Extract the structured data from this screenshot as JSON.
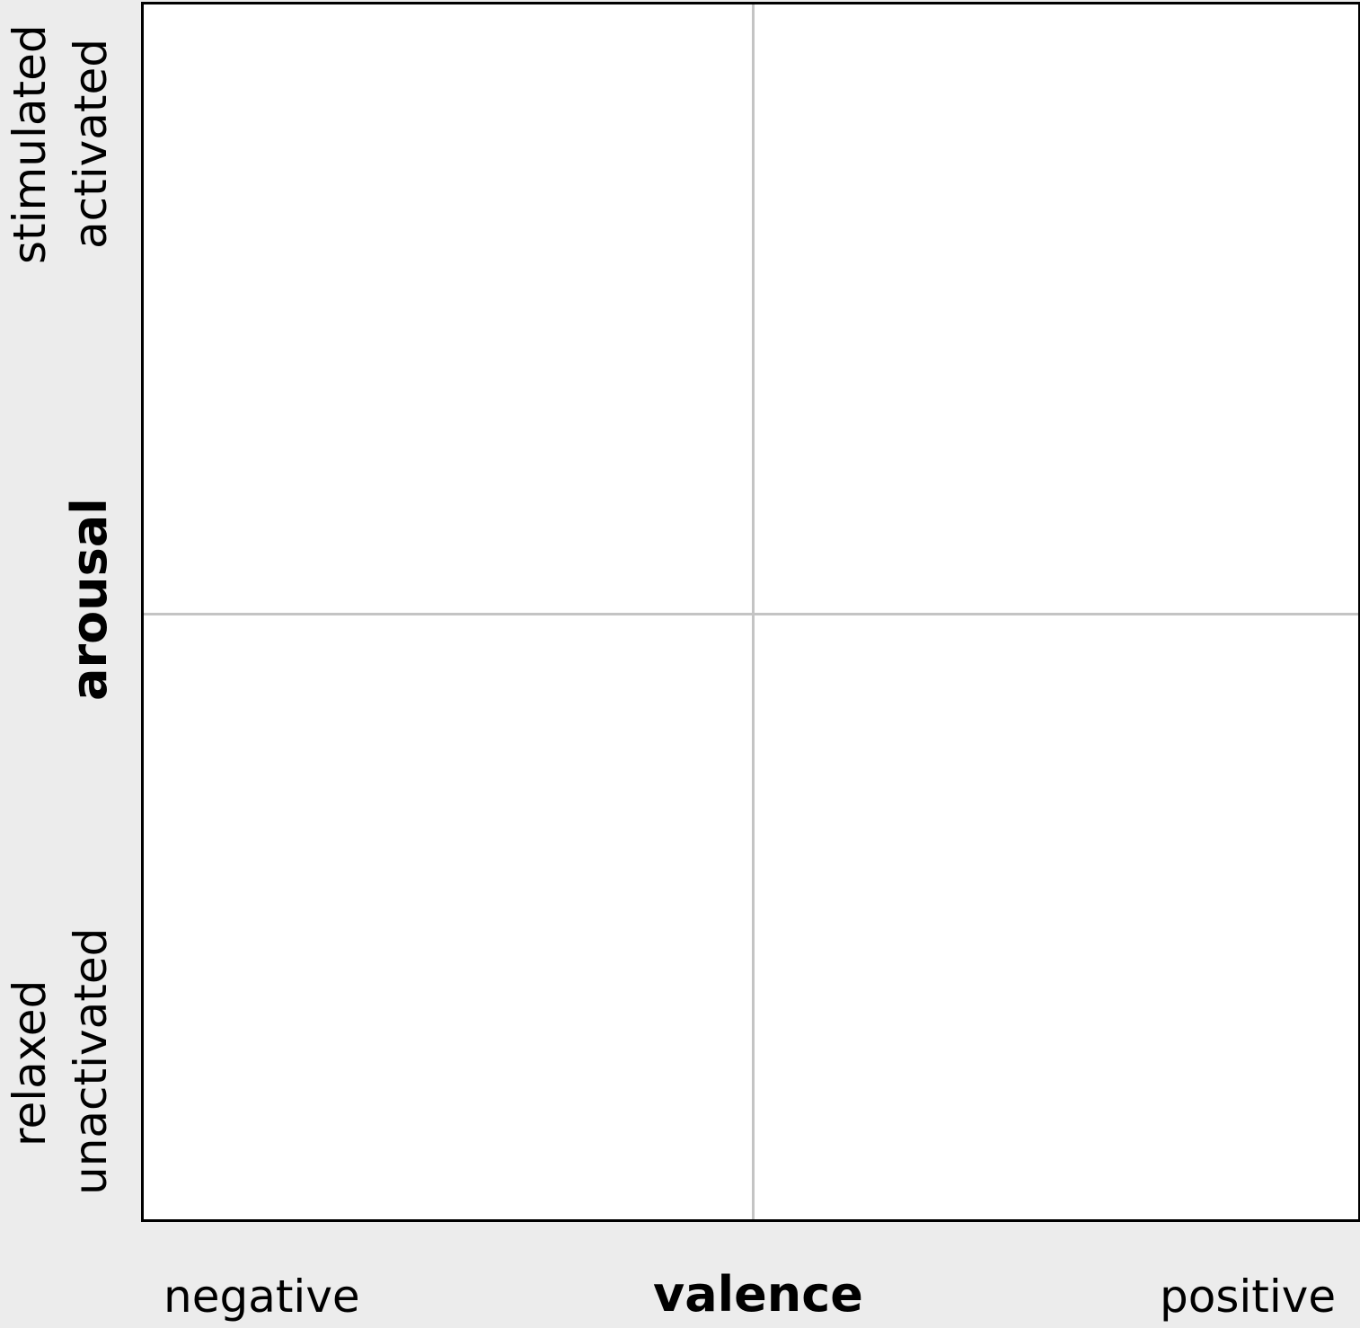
{
  "diagram": {
    "y_axis": {
      "title": "arousal",
      "high_labels": [
        "stimulated",
        "activated"
      ],
      "low_labels": [
        "relaxed",
        "unactivated"
      ]
    },
    "x_axis": {
      "title": "valence",
      "low_label": "negative",
      "high_label": "positive"
    },
    "colors": {
      "background": "#ececec",
      "plot_background": "#ffffff",
      "border": "#000000",
      "center_lines": "#c4c4c4"
    }
  }
}
